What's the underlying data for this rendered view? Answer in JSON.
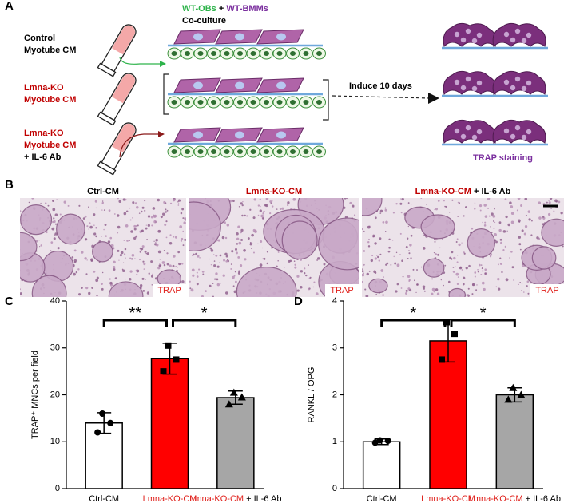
{
  "panel_labels": [
    "A",
    "B",
    "C",
    "D"
  ],
  "panel_a": {
    "conditions": [
      {
        "lines": [
          "Control",
          "Myotube CM"
        ],
        "color": "#000000"
      },
      {
        "lines": [
          "Lmna-KO",
          "Myotube CM"
        ],
        "color": "#c00000"
      },
      {
        "lines": [
          "Lmna-KO",
          "Myotube CM",
          "+ IL-6 Ab"
        ],
        "color": "#c00000"
      }
    ],
    "header": {
      "obs": "WT-OBs",
      "plus": "+",
      "bmms": "WT-BMMs",
      "sub": "Co-culture"
    },
    "arrow_label": "Induce 10 days",
    "result_label": "TRAP staining"
  },
  "panel_b": {
    "titles": [
      {
        "parts": [
          "Ctrl-CM"
        ]
      },
      {
        "parts": [
          "Lmna-KO-CM"
        ]
      },
      {
        "parts": [
          "Lmna-KO-CM",
          " + IL-6 Ab"
        ]
      }
    ],
    "stain_label": "TRAP"
  },
  "chart_data": [
    {
      "type": "bar",
      "y_label": "TRAP⁺ MNCs per field",
      "categories": [
        "Ctrl-CM",
        "Lmna-KO-CM",
        "Lmna-KO-CM + IL-6 Ab"
      ],
      "label_highlight": {
        "text": "Lmna-KO-CM",
        "color": "#e0201b"
      },
      "values": [
        14,
        27.7,
        19.4
      ],
      "errors": [
        2.2,
        3.3,
        1.4
      ],
      "points": [
        [
          16,
          14,
          12
        ],
        [
          30.5,
          27.5,
          25
        ],
        [
          20.5,
          19.5,
          18
        ]
      ],
      "colors": [
        "#ffffff",
        "#ff0000",
        "#a6a6a6"
      ],
      "markers": [
        "circle",
        "square",
        "triangle"
      ],
      "ylim": [
        0,
        40
      ],
      "yticks": [
        0,
        10,
        20,
        30,
        40
      ],
      "significance": [
        {
          "from": 0,
          "to": 1,
          "label": "**"
        },
        {
          "from": 1,
          "to": 2,
          "label": "*"
        }
      ]
    },
    {
      "type": "bar",
      "y_label": "RANKL / OPG",
      "categories": [
        "Ctrl-CM",
        "Lmna-KO-CM",
        "Lmna-KO-CM + IL-6 Ab"
      ],
      "label_highlight": {
        "text": "Lmna-KO-CM",
        "color": "#e0201b"
      },
      "values": [
        1.0,
        3.15,
        2.0
      ],
      "errors": [
        0.06,
        0.45,
        0.15
      ],
      "points": [
        [
          1.03,
          1.02,
          0.98
        ],
        [
          3.55,
          3.3,
          2.75
        ],
        [
          2.15,
          2.0,
          1.9
        ]
      ],
      "colors": [
        "#ffffff",
        "#ff0000",
        "#a6a6a6"
      ],
      "markers": [
        "circle",
        "square",
        "triangle"
      ],
      "ylim": [
        0,
        4
      ],
      "yticks": [
        0,
        1,
        2,
        3,
        4
      ],
      "significance": [
        {
          "from": 0,
          "to": 1,
          "label": "*"
        },
        {
          "from": 1,
          "to": 2,
          "label": "*"
        }
      ]
    }
  ]
}
